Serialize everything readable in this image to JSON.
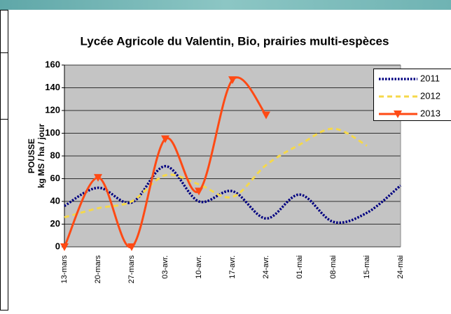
{
  "chart_data": {
    "type": "line",
    "title": "Lycée Agricole du Valentin, Bio, prairies multi-espèces",
    "y_label": [
      "POUSSE",
      "kg MS / ha / jour"
    ],
    "categories": [
      "13-mars",
      "20-mars",
      "27-mars",
      "03-avr.",
      "10-avr.",
      "17-avr.",
      "24-avr.",
      "01-mai",
      "08-mai",
      "15-mai",
      "24-mai"
    ],
    "series": [
      {
        "name": "2011",
        "color": "#000080",
        "values": [
          36,
          52,
          39,
          71,
          40,
          49,
          25,
          46,
          22,
          30,
          54
        ]
      },
      {
        "name": "2012",
        "color": "#f5d84a",
        "values": [
          26,
          34,
          40,
          63,
          55,
          44,
          72,
          90,
          104,
          89,
          null
        ]
      },
      {
        "name": "2013",
        "color": "#ff4a14",
        "values": [
          0,
          61,
          0,
          95,
          49,
          147,
          116,
          null,
          null,
          null,
          null
        ]
      }
    ],
    "ylim": [
      0,
      160
    ],
    "yticks": [
      0,
      20,
      40,
      60,
      80,
      100,
      120,
      140,
      160
    ],
    "grid": true,
    "smooth": true,
    "legend": "right"
  }
}
